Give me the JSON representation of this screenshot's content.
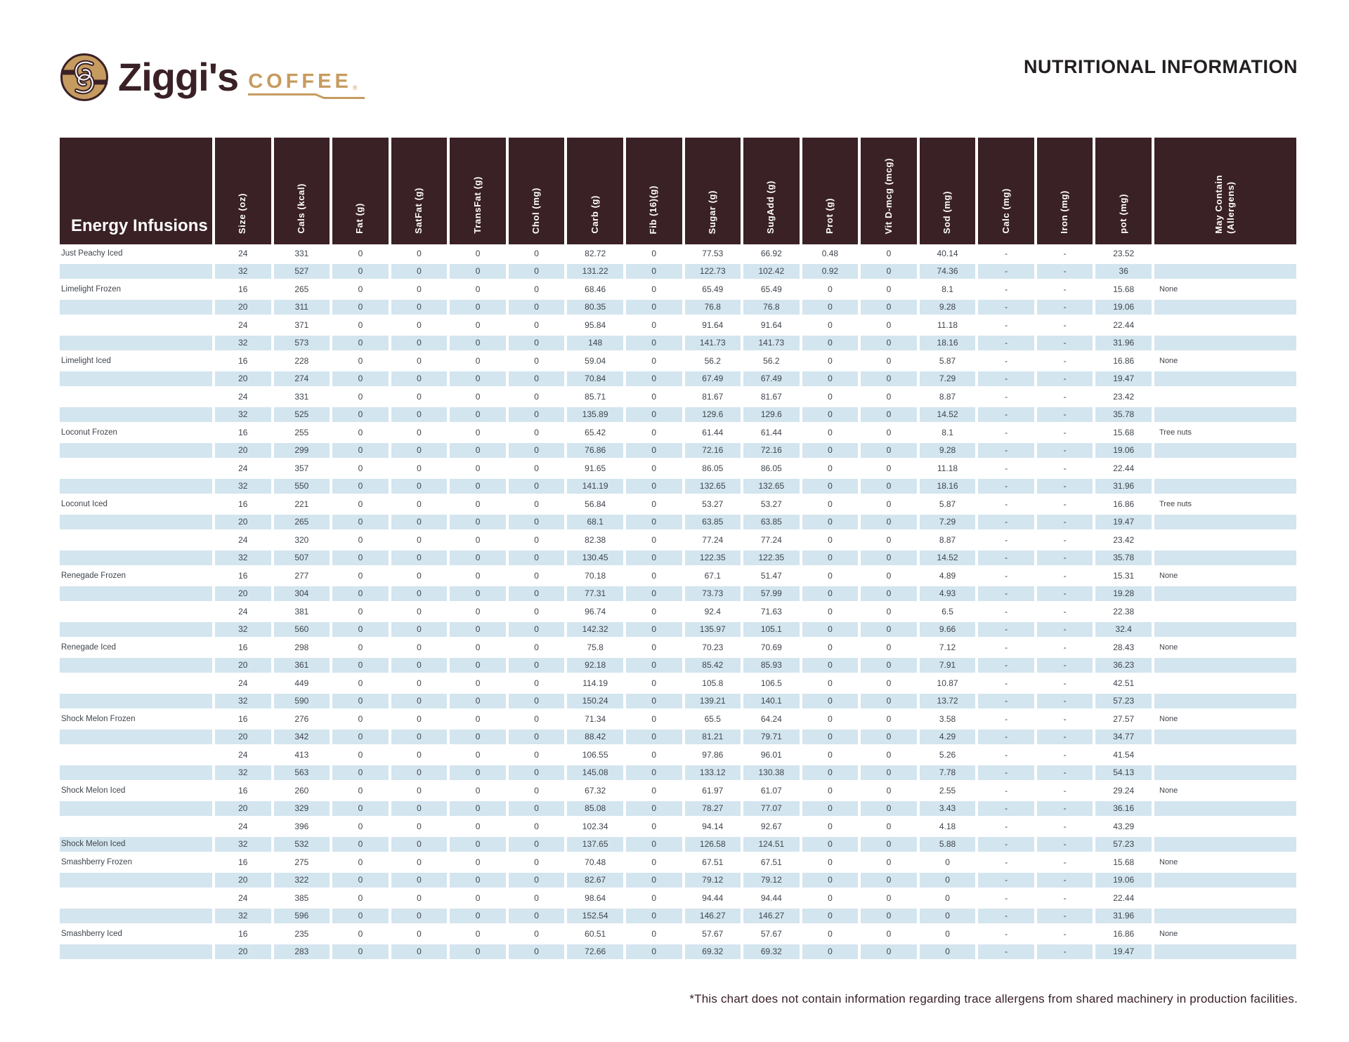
{
  "brand": {
    "name": "Ziggi's",
    "word": "COFFEE",
    "registered": "®"
  },
  "page_title": "NUTRITIONAL INFORMATION",
  "footnote": "*This chart does not contain information regarding trace allergens from shared machinery in production facilities.",
  "colors": {
    "header_bg": "#3A2125",
    "row_alt": "#D3E5EF",
    "gold": "#C69B60",
    "body_text": "#3F454C",
    "title_text": "#231F20"
  },
  "table": {
    "group_title": "Energy Infusions",
    "column_keys": [
      "size",
      "cals",
      "fat",
      "satfat",
      "transfat",
      "chol",
      "carb",
      "fib",
      "sugar",
      "sugadd",
      "prot",
      "vitd",
      "sod",
      "calc",
      "iron",
      "pot",
      "allergens"
    ],
    "columns": [
      "Size (oz)",
      "Cals (kcal)",
      "Fat (g)",
      "SatFat (g)",
      "TransFat (g)",
      "Chol (mg)",
      "Carb (g)",
      "Fib (16)(g)",
      "Sugar (g)",
      "SugAdd (g)",
      "Prot (g)",
      "Vit D-mcg (mcg)",
      "Sod (mg)",
      "Calc (mg)",
      "Iron (mg)",
      "pot (mg)",
      "May Contain\n(Allergens)"
    ],
    "rows": [
      {
        "name": "Just Peachy Iced",
        "values": [
          "24",
          "331",
          "0",
          "0",
          "0",
          "0",
          "82.72",
          "0",
          "77.53",
          "66.92",
          "0.48",
          "0",
          "40.14",
          "-",
          "-",
          "23.52",
          ""
        ]
      },
      {
        "name": "",
        "values": [
          "32",
          "527",
          "0",
          "0",
          "0",
          "0",
          "131.22",
          "0",
          "122.73",
          "102.42",
          "0.92",
          "0",
          "74.36",
          "-",
          "-",
          "36",
          ""
        ]
      },
      {
        "name": "Limelight Frozen",
        "values": [
          "16",
          "265",
          "0",
          "0",
          "0",
          "0",
          "68.46",
          "0",
          "65.49",
          "65.49",
          "0",
          "0",
          "8.1",
          "-",
          "-",
          "15.68",
          "None"
        ]
      },
      {
        "name": "",
        "values": [
          "20",
          "311",
          "0",
          "0",
          "0",
          "0",
          "80.35",
          "0",
          "76.8",
          "76.8",
          "0",
          "0",
          "9.28",
          "-",
          "-",
          "19.06",
          ""
        ]
      },
      {
        "name": "",
        "values": [
          "24",
          "371",
          "0",
          "0",
          "0",
          "0",
          "95.84",
          "0",
          "91.64",
          "91.64",
          "0",
          "0",
          "11.18",
          "-",
          "-",
          "22.44",
          ""
        ]
      },
      {
        "name": "",
        "values": [
          "32",
          "573",
          "0",
          "0",
          "0",
          "0",
          "148",
          "0",
          "141.73",
          "141.73",
          "0",
          "0",
          "18.16",
          "-",
          "-",
          "31.96",
          ""
        ]
      },
      {
        "name": "Limelight Iced",
        "values": [
          "16",
          "228",
          "0",
          "0",
          "0",
          "0",
          "59.04",
          "0",
          "56.2",
          "56.2",
          "0",
          "0",
          "5.87",
          "-",
          "-",
          "16.86",
          "None"
        ]
      },
      {
        "name": "",
        "values": [
          "20",
          "274",
          "0",
          "0",
          "0",
          "0",
          "70.84",
          "0",
          "67.49",
          "67.49",
          "0",
          "0",
          "7.29",
          "-",
          "-",
          "19.47",
          ""
        ]
      },
      {
        "name": "",
        "values": [
          "24",
          "331",
          "0",
          "0",
          "0",
          "0",
          "85.71",
          "0",
          "81.67",
          "81.67",
          "0",
          "0",
          "8.87",
          "-",
          "-",
          "23.42",
          ""
        ]
      },
      {
        "name": "",
        "values": [
          "32",
          "525",
          "0",
          "0",
          "0",
          "0",
          "135.89",
          "0",
          "129.6",
          "129.6",
          "0",
          "0",
          "14.52",
          "-",
          "-",
          "35.78",
          ""
        ]
      },
      {
        "name": "Loconut Frozen",
        "values": [
          "16",
          "255",
          "0",
          "0",
          "0",
          "0",
          "65.42",
          "0",
          "61.44",
          "61.44",
          "0",
          "0",
          "8.1",
          "-",
          "-",
          "15.68",
          "Tree nuts"
        ]
      },
      {
        "name": "",
        "values": [
          "20",
          "299",
          "0",
          "0",
          "0",
          "0",
          "76.86",
          "0",
          "72.16",
          "72.16",
          "0",
          "0",
          "9.28",
          "-",
          "-",
          "19.06",
          ""
        ]
      },
      {
        "name": "",
        "values": [
          "24",
          "357",
          "0",
          "0",
          "0",
          "0",
          "91.65",
          "0",
          "86.05",
          "86.05",
          "0",
          "0",
          "11.18",
          "-",
          "-",
          "22.44",
          ""
        ]
      },
      {
        "name": "",
        "values": [
          "32",
          "550",
          "0",
          "0",
          "0",
          "0",
          "141.19",
          "0",
          "132.65",
          "132.65",
          "0",
          "0",
          "18.16",
          "-",
          "-",
          "31.96",
          ""
        ]
      },
      {
        "name": "Loconut Iced",
        "values": [
          "16",
          "221",
          "0",
          "0",
          "0",
          "0",
          "56.84",
          "0",
          "53.27",
          "53.27",
          "0",
          "0",
          "5.87",
          "-",
          "-",
          "16.86",
          "Tree nuts"
        ]
      },
      {
        "name": "",
        "values": [
          "20",
          "265",
          "0",
          "0",
          "0",
          "0",
          "68.1",
          "0",
          "63.85",
          "63.85",
          "0",
          "0",
          "7.29",
          "-",
          "-",
          "19.47",
          ""
        ]
      },
      {
        "name": "",
        "values": [
          "24",
          "320",
          "0",
          "0",
          "0",
          "0",
          "82.38",
          "0",
          "77.24",
          "77.24",
          "0",
          "0",
          "8.87",
          "-",
          "-",
          "23.42",
          ""
        ]
      },
      {
        "name": "",
        "values": [
          "32",
          "507",
          "0",
          "0",
          "0",
          "0",
          "130.45",
          "0",
          "122.35",
          "122.35",
          "0",
          "0",
          "14.52",
          "-",
          "-",
          "35.78",
          ""
        ]
      },
      {
        "name": "Renegade Frozen",
        "values": [
          "16",
          "277",
          "0",
          "0",
          "0",
          "0",
          "70.18",
          "0",
          "67.1",
          "51.47",
          "0",
          "0",
          "4.89",
          "-",
          "-",
          "15.31",
          "None"
        ]
      },
      {
        "name": "",
        "values": [
          "20",
          "304",
          "0",
          "0",
          "0",
          "0",
          "77.31",
          "0",
          "73.73",
          "57.99",
          "0",
          "0",
          "4.93",
          "-",
          "-",
          "19.28",
          ""
        ]
      },
      {
        "name": "",
        "values": [
          "24",
          "381",
          "0",
          "0",
          "0",
          "0",
          "96.74",
          "0",
          "92.4",
          "71.63",
          "0",
          "0",
          "6.5",
          "-",
          "-",
          "22.38",
          ""
        ]
      },
      {
        "name": "",
        "values": [
          "32",
          "560",
          "0",
          "0",
          "0",
          "0",
          "142.32",
          "0",
          "135.97",
          "105.1",
          "0",
          "0",
          "9.66",
          "-",
          "-",
          "32.4",
          ""
        ]
      },
      {
        "name": "Renegade Iced",
        "values": [
          "16",
          "298",
          "0",
          "0",
          "0",
          "0",
          "75.8",
          "0",
          "70.23",
          "70.69",
          "0",
          "0",
          "7.12",
          "-",
          "-",
          "28.43",
          "None"
        ]
      },
      {
        "name": "",
        "values": [
          "20",
          "361",
          "0",
          "0",
          "0",
          "0",
          "92.18",
          "0",
          "85.42",
          "85.93",
          "0",
          "0",
          "7.91",
          "-",
          "-",
          "36.23",
          ""
        ]
      },
      {
        "name": "",
        "values": [
          "24",
          "449",
          "0",
          "0",
          "0",
          "0",
          "114.19",
          "0",
          "105.8",
          "106.5",
          "0",
          "0",
          "10.87",
          "-",
          "-",
          "42.51",
          ""
        ]
      },
      {
        "name": "",
        "values": [
          "32",
          "590",
          "0",
          "0",
          "0",
          "0",
          "150.24",
          "0",
          "139.21",
          "140.1",
          "0",
          "0",
          "13.72",
          "-",
          "-",
          "57.23",
          ""
        ]
      },
      {
        "name": "Shock Melon Frozen",
        "values": [
          "16",
          "276",
          "0",
          "0",
          "0",
          "0",
          "71.34",
          "0",
          "65.5",
          "64.24",
          "0",
          "0",
          "3.58",
          "-",
          "-",
          "27.57",
          "None"
        ]
      },
      {
        "name": "",
        "values": [
          "20",
          "342",
          "0",
          "0",
          "0",
          "0",
          "88.42",
          "0",
          "81.21",
          "79.71",
          "0",
          "0",
          "4.29",
          "-",
          "-",
          "34.77",
          ""
        ]
      },
      {
        "name": "",
        "values": [
          "24",
          "413",
          "0",
          "0",
          "0",
          "0",
          "106.55",
          "0",
          "97.86",
          "96.01",
          "0",
          "0",
          "5.26",
          "-",
          "-",
          "41.54",
          ""
        ]
      },
      {
        "name": "",
        "values": [
          "32",
          "563",
          "0",
          "0",
          "0",
          "0",
          "145.08",
          "0",
          "133.12",
          "130.38",
          "0",
          "0",
          "7.78",
          "-",
          "-",
          "54.13",
          ""
        ]
      },
      {
        "name": "Shock Melon Iced",
        "values": [
          "16",
          "260",
          "0",
          "0",
          "0",
          "0",
          "67.32",
          "0",
          "61.97",
          "61.07",
          "0",
          "0",
          "2.55",
          "-",
          "-",
          "29.24",
          "None"
        ]
      },
      {
        "name": "",
        "values": [
          "20",
          "329",
          "0",
          "0",
          "0",
          "0",
          "85.08",
          "0",
          "78.27",
          "77.07",
          "0",
          "0",
          "3.43",
          "-",
          "-",
          "36.16",
          ""
        ]
      },
      {
        "name": "",
        "values": [
          "24",
          "396",
          "0",
          "0",
          "0",
          "0",
          "102.34",
          "0",
          "94.14",
          "92.67",
          "0",
          "0",
          "4.18",
          "-",
          "-",
          "43.29",
          ""
        ]
      },
      {
        "name": "Shock Melon Iced",
        "values": [
          "32",
          "532",
          "0",
          "0",
          "0",
          "0",
          "137.65",
          "0",
          "126.58",
          "124.51",
          "0",
          "0",
          "5.88",
          "-",
          "-",
          "57.23",
          ""
        ]
      },
      {
        "name": "Smashberry Frozen",
        "values": [
          "16",
          "275",
          "0",
          "0",
          "0",
          "0",
          "70.48",
          "0",
          "67.51",
          "67.51",
          "0",
          "0",
          "0",
          "-",
          "-",
          "15.68",
          "None"
        ]
      },
      {
        "name": "",
        "values": [
          "20",
          "322",
          "0",
          "0",
          "0",
          "0",
          "82.67",
          "0",
          "79.12",
          "79.12",
          "0",
          "0",
          "0",
          "-",
          "-",
          "19.06",
          ""
        ]
      },
      {
        "name": "",
        "values": [
          "24",
          "385",
          "0",
          "0",
          "0",
          "0",
          "98.64",
          "0",
          "94.44",
          "94.44",
          "0",
          "0",
          "0",
          "-",
          "-",
          "22.44",
          ""
        ]
      },
      {
        "name": "",
        "values": [
          "32",
          "596",
          "0",
          "0",
          "0",
          "0",
          "152.54",
          "0",
          "146.27",
          "146.27",
          "0",
          "0",
          "0",
          "-",
          "-",
          "31.96",
          ""
        ]
      },
      {
        "name": "Smashberry Iced",
        "values": [
          "16",
          "235",
          "0",
          "0",
          "0",
          "0",
          "60.51",
          "0",
          "57.67",
          "57.67",
          "0",
          "0",
          "0",
          "-",
          "-",
          "16.86",
          "None"
        ]
      },
      {
        "name": "",
        "values": [
          "20",
          "283",
          "0",
          "0",
          "0",
          "0",
          "72.66",
          "0",
          "69.32",
          "69.32",
          "0",
          "0",
          "0",
          "-",
          "-",
          "19.47",
          ""
        ]
      }
    ]
  }
}
